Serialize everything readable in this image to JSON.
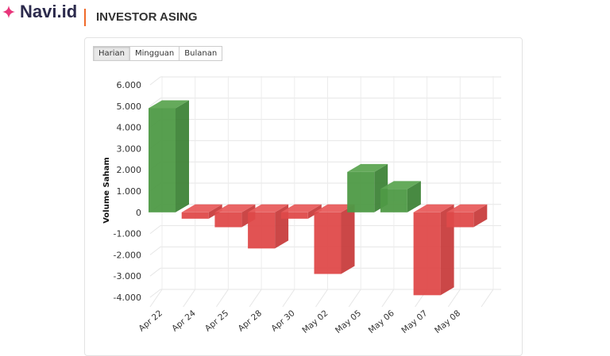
{
  "header": {
    "logo": "Navi.id",
    "title": "INVESTOR ASING"
  },
  "tabs": [
    {
      "label": "Harian",
      "active": true
    },
    {
      "label": "Mingguan",
      "active": false
    },
    {
      "label": "Bulanan",
      "active": false
    }
  ],
  "colors": {
    "positive": "#4f9a46",
    "negative": "#e04a4a",
    "accent": "#f06a2a",
    "logo": "#e8357a"
  },
  "chart_data": {
    "type": "bar",
    "style": "3d",
    "title": "",
    "xlabel": "",
    "ylabel": "Volume Saham",
    "ylim": [
      -4000,
      6000
    ],
    "yticks": [
      "6.000",
      "5.000",
      "4.000",
      "3.000",
      "2.000",
      "1.000",
      "0",
      "-1.000",
      "-2.000",
      "-3.000",
      "-4.000"
    ],
    "grid": true,
    "categories": [
      "Apr 22",
      "Apr 24",
      "Apr 25",
      "Apr 28",
      "Apr 30",
      "May 02",
      "May 05",
      "May 06",
      "May 07",
      "May 08"
    ],
    "values": [
      4900,
      -300,
      -700,
      -1700,
      -300,
      -2900,
      1900,
      1100,
      -3900,
      -700
    ]
  }
}
